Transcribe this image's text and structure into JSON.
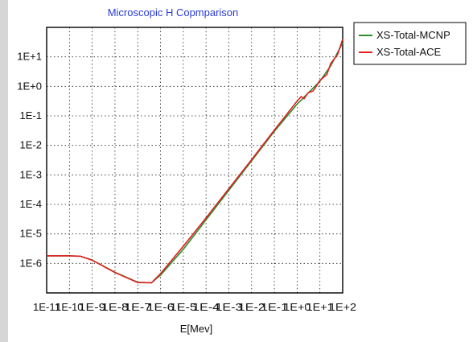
{
  "chart_data": {
    "type": "line",
    "title": "Microscopic H Copmparison",
    "xlabel": "E[Mev]",
    "ylabel": "",
    "x_scale": "log",
    "y_scale": "log",
    "xlim": [
      1e-11,
      100
    ],
    "ylim": [
      1e-07,
      100
    ],
    "grid": true,
    "grid_style": "dotted",
    "legend_position": "outside-top-right",
    "x_tick_labels": [
      "1E-11",
      "1E-10",
      "1E-9",
      "1E-8",
      "1E-7",
      "1E-6",
      "1E-5",
      "1E-4",
      "1E-3",
      "1E-2",
      "1E-1",
      "1E+0",
      "1E+1",
      "1E+2"
    ],
    "x_ticks": [
      1e-11,
      1e-10,
      1e-09,
      1e-08,
      1e-07,
      1e-06,
      1e-05,
      0.0001,
      0.001,
      0.01,
      0.1,
      1,
      10,
      100
    ],
    "y_tick_labels": [
      "1E-6",
      "1E-5",
      "1E-4",
      "1E-3",
      "1E-2",
      "1E-1",
      "1E+0",
      "1E+1"
    ],
    "y_ticks": [
      1e-06,
      1e-05,
      0.0001,
      0.001,
      0.01,
      0.1,
      1,
      10
    ],
    "series": [
      {
        "name": "XS-Total-MCNP",
        "color": "#2e8b2e",
        "points": [
          [
            1e-11,
            1.8e-06
          ],
          [
            1e-10,
            1.8e-06
          ],
          [
            3e-10,
            1.75e-06
          ],
          [
            1e-09,
            1.3e-06
          ],
          [
            1e-08,
            5e-07
          ],
          [
            1e-07,
            2.3e-07
          ],
          [
            4e-07,
            2.2e-07
          ],
          [
            1e-06,
            4e-07
          ],
          [
            1e-05,
            3e-06
          ],
          [
            0.0001,
            3e-05
          ],
          [
            0.001,
            0.0003
          ],
          [
            0.01,
            0.003
          ],
          [
            0.1,
            0.03
          ],
          [
            1,
            0.25
          ],
          [
            10,
            1.5
          ],
          [
            30,
            5
          ],
          [
            100,
            30
          ]
        ]
      },
      {
        "name": "XS-Total-ACE",
        "color": "#e02020",
        "points": [
          [
            1e-11,
            1.8e-06
          ],
          [
            1e-10,
            1.8e-06
          ],
          [
            3e-10,
            1.75e-06
          ],
          [
            1e-09,
            1.28e-06
          ],
          [
            1e-08,
            4.9e-07
          ],
          [
            1e-07,
            2.25e-07
          ],
          [
            4e-07,
            2.2e-07
          ],
          [
            1e-06,
            4.5e-07
          ],
          [
            1e-05,
            3.8e-06
          ],
          [
            0.0001,
            3.5e-05
          ],
          [
            0.001,
            0.00034
          ],
          [
            0.01,
            0.0033
          ],
          [
            0.1,
            0.033
          ],
          [
            0.5,
            0.16
          ],
          [
            1,
            0.32
          ],
          [
            1.5,
            0.45
          ],
          [
            2,
            0.38
          ],
          [
            3,
            0.6
          ],
          [
            5,
            0.7
          ],
          [
            8,
            1.2
          ],
          [
            10,
            1.6
          ],
          [
            20,
            2.5
          ],
          [
            30,
            6
          ],
          [
            60,
            12
          ],
          [
            100,
            40
          ]
        ]
      }
    ]
  },
  "colors": {
    "title": "#2a3bd6",
    "grid": "#222222",
    "frame": "#000000",
    "background": "#ffffff"
  }
}
